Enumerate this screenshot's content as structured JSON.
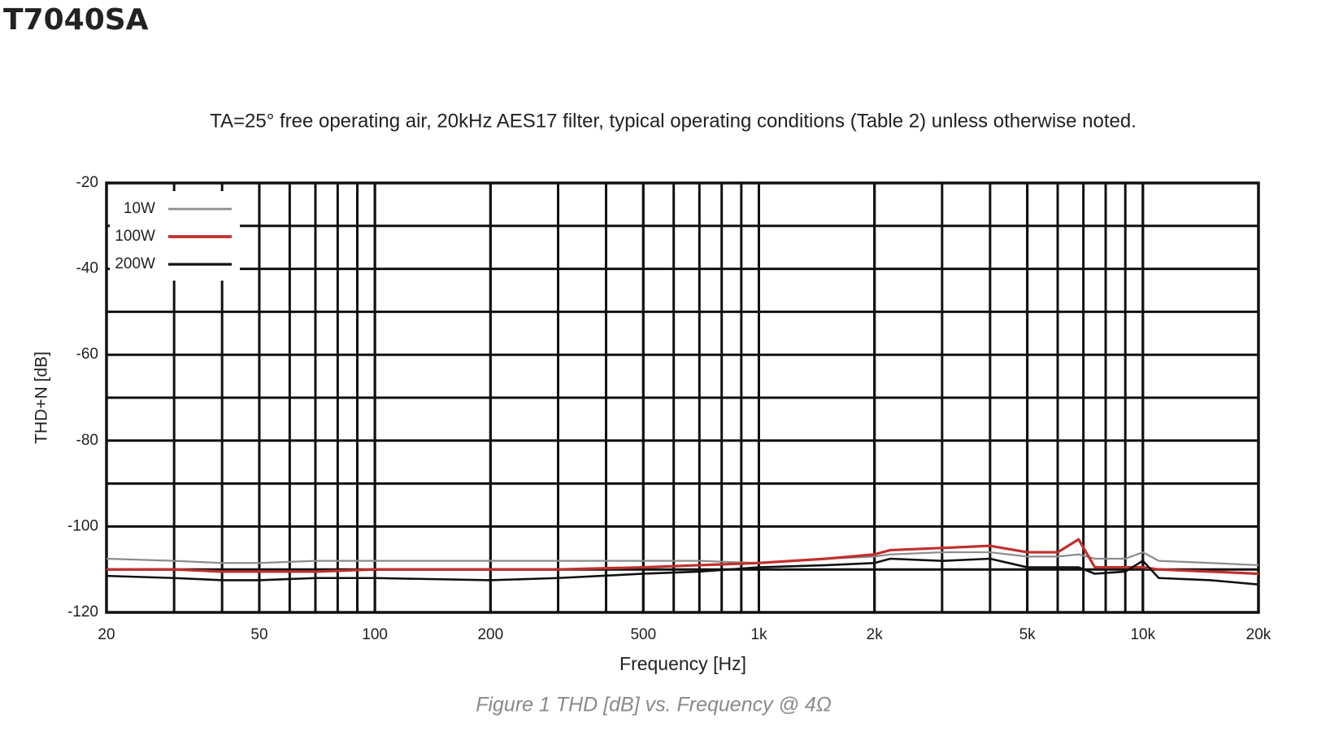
{
  "page_title": "T7040SA",
  "chart_data": {
    "type": "line",
    "title": "TA=25° free operating air, 20kHz AES17 filter, typical operating conditions (Table 2) unless otherwise noted.",
    "x_label": "Frequency [Hz]",
    "y_label": "THD+N [dB]",
    "caption": "Figure 1 THD [dB] vs. Frequency @ 4Ω",
    "xscale": "log",
    "grid": true,
    "legend": "upper left",
    "xlim": [
      20,
      20000
    ],
    "xticks": [
      20,
      50,
      100,
      200,
      500,
      {
        "value": 1000,
        "label": "1k"
      },
      {
        "value": 2000,
        "label": "2k"
      },
      {
        "value": 5000,
        "label": "5k"
      },
      {
        "value": 10000,
        "label": "10k"
      },
      {
        "value": 20000,
        "label": "20k"
      }
    ],
    "ylim": [
      -120,
      -20
    ],
    "yticks": [
      -120,
      -100,
      -80,
      -60,
      -40,
      -20
    ],
    "x": [
      20,
      30,
      40,
      50,
      70,
      100,
      200,
      300,
      500,
      700,
      1000,
      1500,
      2000,
      2200,
      3000,
      4000,
      5000,
      6000,
      6800,
      7500,
      9000,
      10000,
      11000,
      15000,
      20000
    ],
    "series": [
      {
        "name": "10W",
        "color": "#8c8c8c",
        "values": [
          -107.5,
          -108,
          -108.5,
          -108.5,
          -108,
          -108,
          -108,
          -108,
          -108,
          -108,
          -108.5,
          -107.5,
          -107,
          -106.5,
          -106,
          -106,
          -107,
          -107,
          -106.5,
          -107.5,
          -107.5,
          -106,
          -108,
          -108.5,
          -109
        ]
      },
      {
        "name": "100W",
        "color": "#c0302e",
        "values": [
          -110,
          -110,
          -110.5,
          -110.5,
          -110.5,
          -110,
          -110,
          -110,
          -109.5,
          -109,
          -108.5,
          -107.5,
          -106.5,
          -105.5,
          -105,
          -104.5,
          -106,
          -106,
          -103,
          -109.5,
          -109.5,
          -109.5,
          -110,
          -110.5,
          -111
        ]
      },
      {
        "name": "200W",
        "color": "#111111",
        "values": [
          -111.5,
          -112,
          -112.5,
          -112.5,
          -112,
          -112,
          -112.5,
          -112,
          -111,
          -110.5,
          -109.5,
          -109,
          -108.5,
          -107.5,
          -108,
          -107.5,
          -109.5,
          -109.5,
          -109.5,
          -111,
          -110.5,
          -108,
          -112,
          -112.5,
          -113.5
        ]
      }
    ]
  }
}
